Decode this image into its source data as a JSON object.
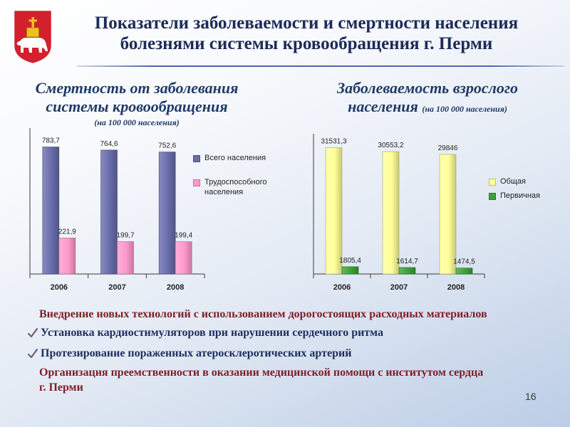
{
  "slide": {
    "title": "Показатели заболеваемости и смертности населения болезнями системы кровообращения г. Перми",
    "page_number": "16",
    "emblem_icon": "perm-coat-of-arms-icon"
  },
  "colors": {
    "title": "#1c2b58",
    "chart_title": "#1f3a68",
    "accent_text": "#7f1d27",
    "item_text": "#1f2d5e",
    "check_mark": "#6c5f7c",
    "rule": "#4a68a6",
    "background_tint": "#bccde6",
    "emblem_field": "#d2202f",
    "emblem_gold": "#f0c020"
  },
  "measures": {
    "intro": "Внедрение новых технологий с использованием дорогостоящих расходных материалов",
    "items": [
      "Установка кардиостимуляторов при нарушении сердечного ритма",
      "Протезирование пораженных атеросклеротических артерий"
    ],
    "outro_lines": [
      "Организация преемственности в оказании медицинской помощи с институтом сердца",
      "г. Перми"
    ],
    "check_icon": "checkmark-icon"
  },
  "chart_data": [
    {
      "type": "bar",
      "title": "Смертность от заболевания системы кровообращения",
      "subtitle": "(на 100 000 населения)",
      "categories": [
        "2006",
        "2007",
        "2008"
      ],
      "series": [
        {
          "name": "Всего населения",
          "values": [
            783.7,
            764.6,
            752.6
          ],
          "labels": [
            "783,7",
            "764,6",
            "752,6"
          ],
          "color": "#686cab"
        },
        {
          "name": "Трудоспособного населения",
          "values": [
            221.9,
            199.7,
            199.4
          ],
          "labels": [
            "221,9",
            "199,7",
            "199,4"
          ],
          "color": "#ff99cc"
        }
      ],
      "ylim": [
        0,
        900
      ],
      "grid": false,
      "legend": "right"
    },
    {
      "type": "bar",
      "title": "Заболеваемость взрослого населения",
      "subtitle": "(на 100 000 населения)",
      "categories": [
        "2006",
        "2007",
        "2008"
      ],
      "series": [
        {
          "name": "Общая",
          "values": [
            31531.3,
            30553.2,
            29846
          ],
          "labels": [
            "31531,3",
            "30553,2",
            "29846"
          ],
          "color": "#ffff99"
        },
        {
          "name": "Первичная",
          "values": [
            1805.4,
            1614.7,
            1474.5
          ],
          "labels": [
            "1805,4",
            "1614,7",
            "1474,5"
          ],
          "color": "#3aa335"
        }
      ],
      "ylim": [
        0,
        35000
      ],
      "grid": false,
      "legend": "right"
    }
  ]
}
